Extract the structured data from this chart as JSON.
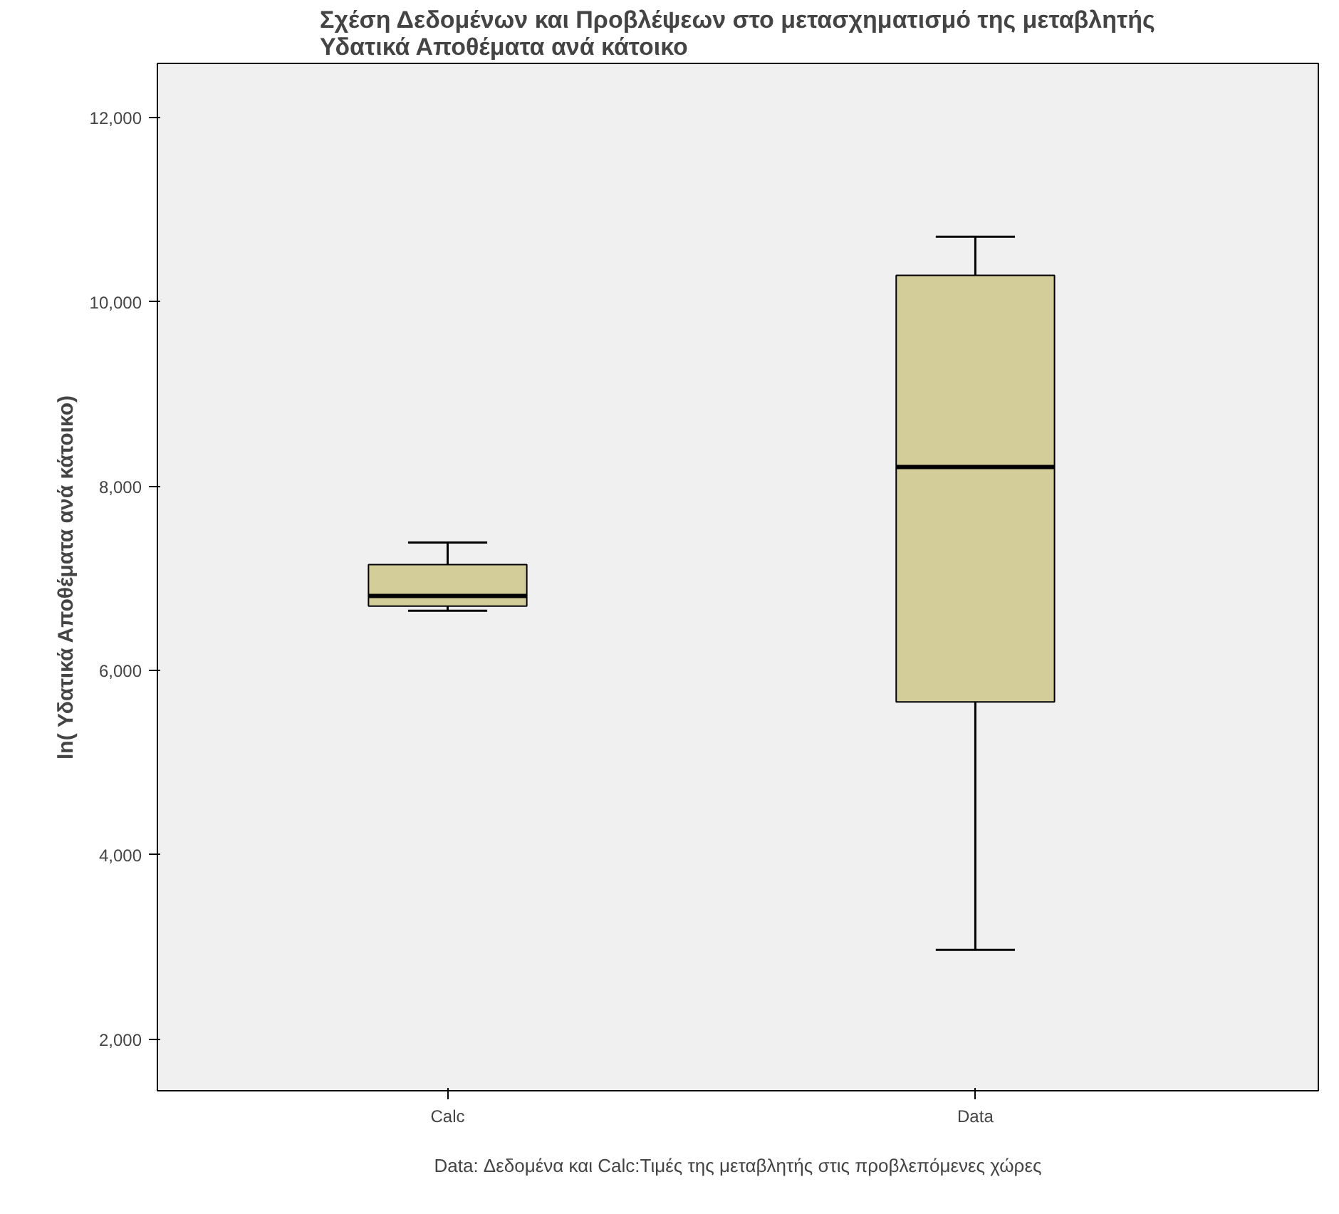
{
  "chart_data": {
    "type": "box",
    "title": "Σχέση Δεδομένων και Προβλέψεων στο μετασχηματισμό της μεταβλητής\nΥδατικά Αποθέματα ανά κάτοικο",
    "ylabel": "ln( Υδατικά Αποθέματα ανά κάτοικο)",
    "categories": [
      "Calc",
      "Data"
    ],
    "color": "#d3cd99",
    "boxes": [
      {
        "low": 6650,
        "q1": 6700,
        "median": 6810,
        "q3": 7150,
        "high": 7390
      },
      {
        "low": 2970,
        "q1": 5660,
        "median": 8210,
        "q3": 10290,
        "high": 10710
      }
    ],
    "ylim": [
      1440,
      12590
    ],
    "yticks": [
      {
        "value": 2000,
        "label": "2,000"
      },
      {
        "value": 4000,
        "label": "4,000"
      },
      {
        "value": 6000,
        "label": "6,000"
      },
      {
        "value": 8000,
        "label": "8,000"
      },
      {
        "value": 10000,
        "label": "10,000"
      },
      {
        "value": 12000,
        "label": "12,000"
      }
    ],
    "grid": false,
    "annotations": [
      "Data: Δεδομένα και Calc:Τιμές της μεταβλητής στις προβλεπόμενες χώρες"
    ]
  }
}
